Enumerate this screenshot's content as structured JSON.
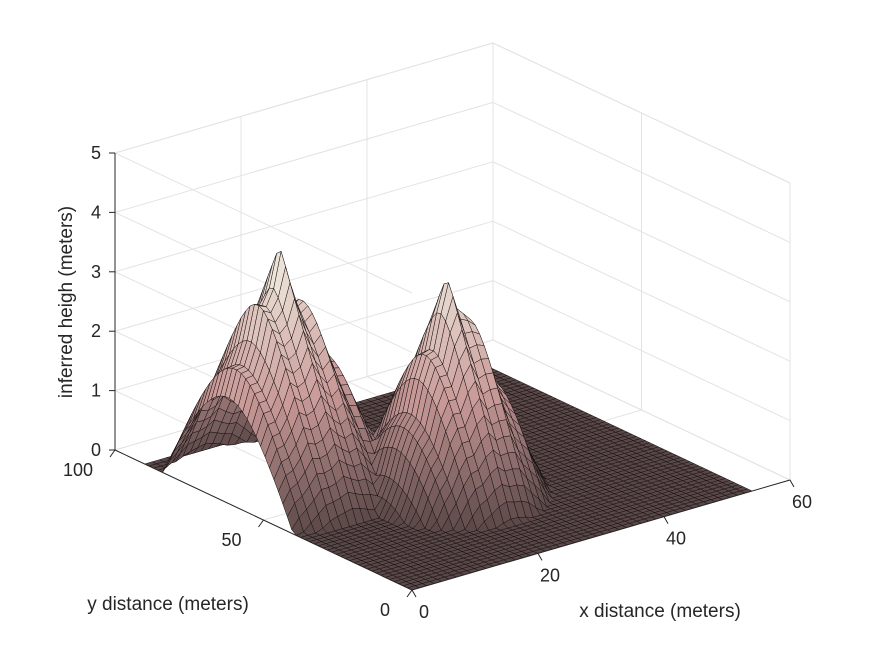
{
  "chart_data": {
    "type": "surface",
    "title": "",
    "xlabel": "x distance (meters)",
    "ylabel": "y distance (meters)",
    "zlabel": "inferred heigh (meters)",
    "xlim": [
      0,
      60
    ],
    "ylim": [
      0,
      100
    ],
    "zlim": [
      0,
      5
    ],
    "xticks": [
      "0",
      "20",
      "40",
      "60"
    ],
    "yticks": [
      "0",
      "50",
      "100"
    ],
    "zticks": [
      "0",
      "1",
      "2",
      "3",
      "4",
      "5"
    ],
    "grid": true,
    "colormap": "pink",
    "surface_extent": {
      "x": [
        0,
        54
      ],
      "y": [
        0,
        90
      ]
    },
    "peaks": [
      {
        "x": 8,
        "y": 62,
        "height": 4.1
      },
      {
        "x": 24,
        "y": 38,
        "height": 3.8
      }
    ],
    "colors": {
      "low": "#5a4747",
      "mid": "#c99a98",
      "high": "#f5f5e8",
      "gridline": "#e3e3e3",
      "axis": "#262626"
    }
  }
}
